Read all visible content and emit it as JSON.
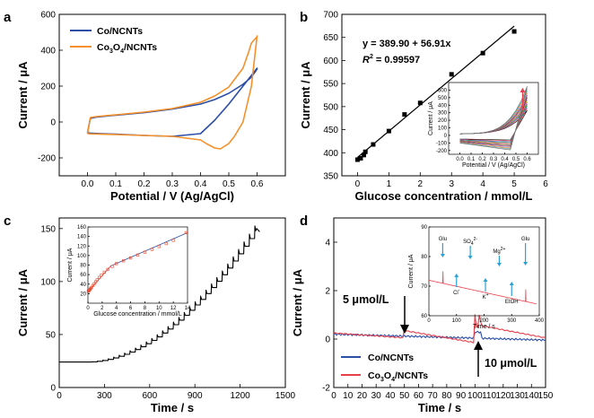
{
  "colors": {
    "blue": "#2b4ea8",
    "orange": "#f5902a",
    "red": "#e8404a",
    "black": "#000000",
    "inset_red": "#e34b2e"
  },
  "chart_data": [
    {
      "panel": "a",
      "type": "line",
      "xlabel": "Potential / V (Ag/AgCl)",
      "ylabel": "Current / μA",
      "xlim": [
        -0.1,
        0.7
      ],
      "ylim": [
        -300,
        600
      ],
      "xticks": [
        "0.0",
        "0.1",
        "0.2",
        "0.3",
        "0.4",
        "0.5",
        "0.6"
      ],
      "yticks": [
        "-200",
        "0",
        "200",
        "400",
        "600"
      ],
      "legend_position": "top-left",
      "series": [
        {
          "name": "Co/NCNTs",
          "color": "#2b4ea8",
          "x": [
            0.0,
            0.01,
            0.03,
            0.1,
            0.2,
            0.3,
            0.4,
            0.45,
            0.5,
            0.55,
            0.58,
            0.6,
            0.6,
            0.55,
            0.5,
            0.45,
            0.4,
            0.3,
            0.2,
            0.1,
            0.05,
            0.01,
            0.0
          ],
          "y": [
            -60,
            20,
            27,
            38,
            52,
            72,
            100,
            125,
            160,
            210,
            250,
            295,
            300,
            200,
            100,
            10,
            -65,
            -80,
            -75,
            -68,
            -65,
            -62,
            -60
          ]
        },
        {
          "name": "Co₃O₄/NCNTs",
          "color": "#f5902a",
          "x": [
            0.0,
            0.01,
            0.03,
            0.1,
            0.2,
            0.3,
            0.4,
            0.45,
            0.5,
            0.55,
            0.57,
            0.58,
            0.6,
            0.6,
            0.58,
            0.55,
            0.52,
            0.5,
            0.47,
            0.45,
            0.42,
            0.4,
            0.3,
            0.2,
            0.1,
            0.05,
            0.01,
            0.0
          ],
          "y": [
            -65,
            25,
            30,
            40,
            55,
            75,
            110,
            145,
            195,
            300,
            390,
            440,
            475,
            480,
            200,
            0,
            -80,
            -120,
            -150,
            -145,
            -120,
            -100,
            -80,
            -75,
            -70,
            -68,
            -66,
            -65
          ]
        }
      ]
    },
    {
      "panel": "b",
      "type": "scatter",
      "xlabel": "Glucose concentration / mmol/L",
      "ylabel": "Current / μA",
      "xlim": [
        -0.5,
        6
      ],
      "ylim": [
        350,
        700
      ],
      "xticks": [
        "0",
        "1",
        "2",
        "3",
        "4",
        "5",
        "6"
      ],
      "yticks": [
        "350",
        "400",
        "450",
        "500",
        "550",
        "600",
        "650",
        "700"
      ],
      "equation": "y = 389.90 + 56.91x",
      "r2_label": "R",
      "r2_exp": "2",
      "r2_value": " = 0.99597",
      "fit": {
        "intercept": 389.9,
        "slope": 56.91,
        "x_range": [
          0,
          5
        ]
      },
      "points": {
        "x": [
          0,
          0.1,
          0.2,
          0.25,
          0.5,
          1.0,
          1.5,
          2.0,
          3.0,
          4.0,
          5.0
        ],
        "y": [
          385,
          388,
          395,
          402,
          418,
          447,
          483,
          508,
          570,
          616,
          663
        ]
      },
      "inset": {
        "xlabel": "Potential / V (Ag/AgCl)",
        "ylabel": "Current / μA",
        "xlim": [
          -0.1,
          0.7
        ],
        "ylim": [
          -250,
          700
        ],
        "xticks": [
          "0.0",
          "0.1",
          "0.2",
          "0.3",
          "0.4",
          "0.5",
          "0.6"
        ],
        "yticks": [
          "-200",
          "-100",
          "0",
          "100",
          "200",
          "300",
          "400",
          "500",
          "600"
        ],
        "curve_colors": [
          "#000000",
          "#e8404a",
          "#3355dd",
          "#33aa33",
          "#aa33aa",
          "#d4aa00",
          "#4a2c80",
          "#993333",
          "#8888dd",
          "#ff7722",
          "#33aaaa",
          "#666666"
        ],
        "tops": [
          330,
          360,
          390,
          410,
          440,
          470,
          500,
          530,
          560,
          590,
          620,
          650
        ],
        "arrow_note": "increasing"
      }
    },
    {
      "panel": "c",
      "type": "line",
      "xlabel": "Time / s",
      "ylabel": "Current / μA",
      "xlim": [
        0,
        1500
      ],
      "ylim": [
        0,
        160
      ],
      "xticks": [
        "0",
        "300",
        "600",
        "900",
        "1200",
        "1500"
      ],
      "yticks": [
        "0",
        "50",
        "100",
        "150"
      ],
      "series": [
        {
          "name": "",
          "color": "#000000",
          "base": 24,
          "step_start_s": 180,
          "step_interval_s": 36,
          "end_value": 148,
          "end_time_s": 1330
        }
      ],
      "inset": {
        "xlabel": "Glucose concentration / mmol/L",
        "ylabel": "Current / μA",
        "xlim": [
          0,
          14
        ],
        "ylim": [
          0,
          160
        ],
        "xticks": [
          "0",
          "2",
          "4",
          "6",
          "8",
          "10",
          "12",
          "14"
        ],
        "yticks": [
          "20",
          "40",
          "60",
          "80",
          "100",
          "120",
          "140",
          "160"
        ],
        "points": {
          "x": [
            0.05,
            0.1,
            0.2,
            0.3,
            0.4,
            0.5,
            0.7,
            0.9,
            1.1,
            1.3,
            1.6,
            1.9,
            2.3,
            2.8,
            3.4,
            4,
            5,
            6,
            7,
            8,
            9,
            10,
            11,
            12,
            13.8
          ],
          "y": [
            25,
            26,
            27,
            29,
            31,
            33,
            37,
            41,
            45,
            49,
            54,
            59,
            65,
            71,
            77,
            83,
            89,
            95,
            101,
            107,
            113,
            119,
            125,
            132,
            148
          ]
        },
        "fit_red": {
          "x": [
            0,
            3.2
          ],
          "y": [
            24,
            78
          ]
        },
        "fit_blue": {
          "x": [
            3.2,
            14
          ],
          "y": [
            78,
            148
          ]
        }
      }
    },
    {
      "panel": "d",
      "type": "line",
      "xlabel": "Time / s",
      "ylabel": "Current / μA",
      "xlim": [
        0,
        150
      ],
      "ylim": [
        -2,
        5
      ],
      "xticks": [
        "0",
        "10",
        "20",
        "30",
        "40",
        "50",
        "60",
        "70",
        "80",
        "90",
        "100",
        "110",
        "120",
        "130",
        "140",
        "150"
      ],
      "yticks": [
        "-2",
        "0",
        "2",
        "4"
      ],
      "legend_position": "bottom-left",
      "annotations": {
        "a1": "5 μmol/L",
        "a2": "10 μmol/L"
      },
      "series": [
        {
          "name": "Co/NCNTs",
          "color": "#2b4ea8"
        },
        {
          "name": "Co₃O₄/NCNTs",
          "color": "#e8404a"
        }
      ],
      "inset": {
        "xlabel": "Time / s",
        "ylabel": "Current / μA",
        "xlim": [
          0,
          400
        ],
        "ylim": [
          60,
          90
        ],
        "xticks": [
          "0",
          "100",
          "200",
          "300",
          "400"
        ],
        "yticks": [
          "60",
          "70",
          "80",
          "90"
        ],
        "line": {
          "x": [
            0,
            390
          ],
          "y": [
            72,
            64
          ]
        },
        "spikes_t": [
          50,
          350
        ]
      }
    }
  ],
  "text": {
    "legend_a_1": "Co/NCNTs",
    "legend_a_2_pre": "Co",
    "legend_a_2_sub": "3",
    "legend_a_2_mid": "O",
    "legend_a_2_sub2": "4",
    "legend_a_2_post": "/NCNTs",
    "inset_d_labels": {
      "glu1": "Glu",
      "so4": "SO",
      "so4_sub": "4",
      "so4_sup": "2-",
      "mg": "Mg",
      "mg_sup": "2+",
      "glu2": "Glu",
      "cl": "Cl",
      "cl_sup": "-",
      "k": "K",
      "k_sup": "+",
      "etoh": "EtOH"
    }
  }
}
